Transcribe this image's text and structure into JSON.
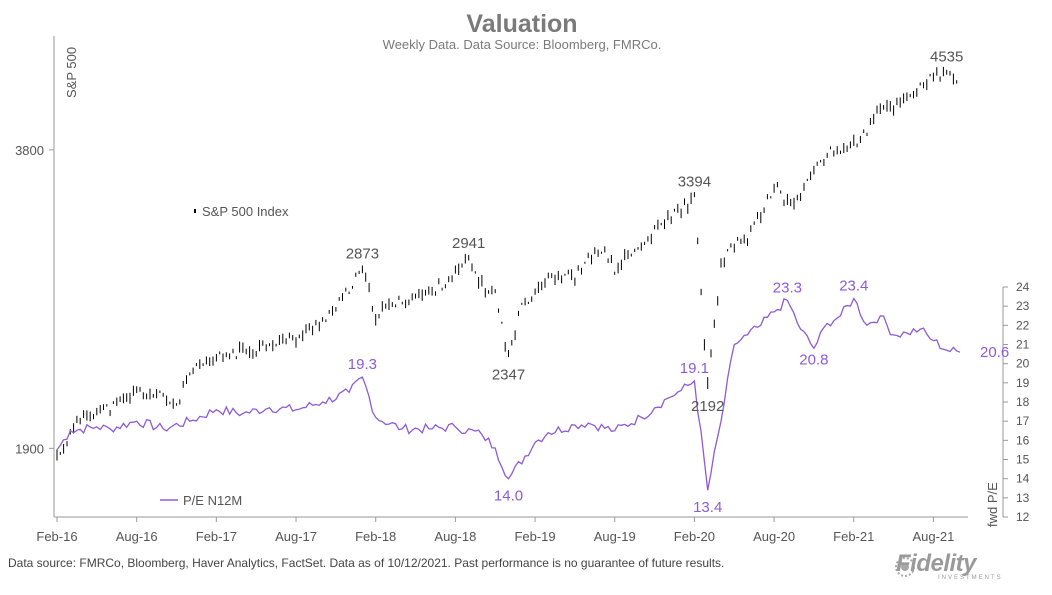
{
  "chart_data": {
    "type": "line",
    "title": "Valuation",
    "subtitle": "Weekly Data. Data Source: Bloomberg, FMRCo.",
    "x_labels": [
      "Feb-16",
      "Aug-16",
      "Feb-17",
      "Aug-17",
      "Feb-18",
      "Aug-18",
      "Feb-19",
      "Aug-19",
      "Feb-20",
      "Aug-20",
      "Feb-21",
      "Aug-21"
    ],
    "x_range": [
      "2016-02",
      "2021-10"
    ],
    "left_axis": {
      "label": "S&P 500",
      "scale": "log",
      "tick_labels": [
        "1900",
        "3800"
      ],
      "ticks": [
        1900,
        3800
      ],
      "range": [
        1620,
        4950
      ]
    },
    "right_axis": {
      "label": "fwd P/E",
      "tick_labels": [
        "12",
        "13",
        "14",
        "15",
        "16",
        "17",
        "18",
        "19",
        "20",
        "21",
        "22",
        "23",
        "24"
      ],
      "range": [
        12,
        24
      ]
    },
    "series": [
      {
        "name": "S&P 500 Index",
        "style": "weekly range bars",
        "color": "#000000",
        "axis": "left",
        "points": [
          [
            "2016-02",
            1864
          ],
          [
            "2016-04",
            2060
          ],
          [
            "2016-06",
            2085
          ],
          [
            "2016-07",
            2120
          ],
          [
            "2016-08",
            2170
          ],
          [
            "2016-10",
            2140
          ],
          [
            "2016-11",
            2100
          ],
          [
            "2016-12",
            2260
          ],
          [
            "2017-02",
            2340
          ],
          [
            "2017-03",
            2365
          ],
          [
            "2017-05",
            2395
          ],
          [
            "2017-06",
            2430
          ],
          [
            "2017-08",
            2450
          ],
          [
            "2017-09",
            2500
          ],
          [
            "2017-11",
            2630
          ],
          [
            "2018-01",
            2873
          ],
          [
            "2018-02",
            2590
          ],
          [
            "2018-03",
            2640
          ],
          [
            "2018-05",
            2710
          ],
          [
            "2018-06",
            2720
          ],
          [
            "2018-08",
            2850
          ],
          [
            "2018-09",
            2941
          ],
          [
            "2018-10",
            2770
          ],
          [
            "2018-11",
            2720
          ],
          [
            "2018-12",
            2347
          ],
          [
            "2019-01",
            2650
          ],
          [
            "2019-03",
            2840
          ],
          [
            "2019-05",
            2830
          ],
          [
            "2019-06",
            2940
          ],
          [
            "2019-07",
            3025
          ],
          [
            "2019-08",
            2880
          ],
          [
            "2019-09",
            2970
          ],
          [
            "2019-10",
            3030
          ],
          [
            "2019-11",
            3140
          ],
          [
            "2019-12",
            3240
          ],
          [
            "2020-02",
            3394
          ],
          [
            "2020-03",
            2192
          ],
          [
            "2020-04",
            2900
          ],
          [
            "2020-05",
            3050
          ],
          [
            "2020-06",
            3100
          ],
          [
            "2020-07",
            3270
          ],
          [
            "2020-08",
            3500
          ],
          [
            "2020-09",
            3360
          ],
          [
            "2020-10",
            3400
          ],
          [
            "2020-11",
            3640
          ],
          [
            "2020-12",
            3760
          ],
          [
            "2021-02",
            3850
          ],
          [
            "2021-03",
            3970
          ],
          [
            "2021-04",
            4180
          ],
          [
            "2021-05",
            4200
          ],
          [
            "2021-06",
            4300
          ],
          [
            "2021-07",
            4400
          ],
          [
            "2021-08",
            4500
          ],
          [
            "2021-09",
            4535
          ],
          [
            "2021-10",
            4400
          ]
        ]
      },
      {
        "name": "P/E N12M",
        "color": "#8e5bd6",
        "axis": "right",
        "points": [
          [
            "2016-02",
            15.5
          ],
          [
            "2016-03",
            16.5
          ],
          [
            "2016-05",
            16.7
          ],
          [
            "2016-06",
            16.6
          ],
          [
            "2016-08",
            17.0
          ],
          [
            "2016-10",
            16.6
          ],
          [
            "2016-12",
            17.0
          ],
          [
            "2017-02",
            17.6
          ],
          [
            "2017-04",
            17.4
          ],
          [
            "2017-06",
            17.7
          ],
          [
            "2017-08",
            17.6
          ],
          [
            "2017-10",
            18.0
          ],
          [
            "2017-12",
            18.5
          ],
          [
            "2018-01",
            19.3
          ],
          [
            "2018-02",
            17.2
          ],
          [
            "2018-04",
            16.6
          ],
          [
            "2018-06",
            16.6
          ],
          [
            "2018-08",
            16.7
          ],
          [
            "2018-10",
            16.3
          ],
          [
            "2018-11",
            15.6
          ],
          [
            "2018-12",
            14.0
          ],
          [
            "2019-02",
            15.9
          ],
          [
            "2019-03",
            16.4
          ],
          [
            "2019-05",
            16.8
          ],
          [
            "2019-06",
            16.9
          ],
          [
            "2019-08",
            16.5
          ],
          [
            "2019-10",
            17.2
          ],
          [
            "2019-11",
            17.7
          ],
          [
            "2019-12",
            18.2
          ],
          [
            "2020-01",
            18.6
          ],
          [
            "2020-02",
            19.1
          ],
          [
            "2020-03",
            13.4
          ],
          [
            "2020-04",
            17.0
          ],
          [
            "2020-05",
            21.0
          ],
          [
            "2020-06",
            21.5
          ],
          [
            "2020-07",
            22.0
          ],
          [
            "2020-08",
            22.7
          ],
          [
            "2020-09",
            23.3
          ],
          [
            "2020-10",
            21.8
          ],
          [
            "2020-11",
            20.8
          ],
          [
            "2020-12",
            22.1
          ],
          [
            "2021-01",
            22.5
          ],
          [
            "2021-02",
            23.4
          ],
          [
            "2021-03",
            22.0
          ],
          [
            "2021-04",
            22.5
          ],
          [
            "2021-05",
            21.5
          ],
          [
            "2021-06",
            21.6
          ],
          [
            "2021-07",
            21.8
          ],
          [
            "2021-08",
            21.2
          ],
          [
            "2021-09",
            20.7
          ],
          [
            "2021-10",
            20.6
          ]
        ]
      }
    ],
    "annotations": [
      {
        "text": "4535",
        "series": "S&P 500 Index",
        "x": "2021-09",
        "y": 4535
      },
      {
        "text": "3394",
        "series": "S&P 500 Index",
        "x": "2020-02",
        "y": 3394
      },
      {
        "text": "2873",
        "series": "S&P 500 Index",
        "x": "2018-01",
        "y": 2873
      },
      {
        "text": "2941",
        "series": "S&P 500 Index",
        "x": "2018-09",
        "y": 2941
      },
      {
        "text": "2347",
        "series": "S&P 500 Index",
        "x": "2018-12",
        "y": 2347
      },
      {
        "text": "2192",
        "series": "S&P 500 Index",
        "x": "2020-03",
        "y": 2192
      },
      {
        "text": "19.3",
        "series": "P/E N12M",
        "x": "2018-01",
        "y": 19.3
      },
      {
        "text": "14.0",
        "series": "P/E N12M",
        "x": "2018-12",
        "y": 14.0
      },
      {
        "text": "19.1",
        "series": "P/E N12M",
        "x": "2020-02",
        "y": 19.1
      },
      {
        "text": "13.4",
        "series": "P/E N12M",
        "x": "2020-03",
        "y": 13.4
      },
      {
        "text": "23.3",
        "series": "P/E N12M",
        "x": "2020-09",
        "y": 23.3
      },
      {
        "text": "20.8",
        "series": "P/E N12M",
        "x": "2020-11",
        "y": 20.8
      },
      {
        "text": "23.4",
        "series": "P/E N12M",
        "x": "2021-02",
        "y": 23.4
      },
      {
        "text": "20.6",
        "series": "P/E N12M",
        "x": "2021-10",
        "y": 20.6
      }
    ],
    "legend": [
      {
        "label": "S&P 500 Index",
        "series": "S&P 500 Index"
      },
      {
        "label": "P/E N12M",
        "series": "P/E N12M"
      }
    ],
    "grid": false
  },
  "footer": {
    "source_note": "Data source: FMRCo, Bloomberg, Haver Analytics, FactSet. Data as of 10/12/2021. Past performance is no guarantee of future results.",
    "brand_name": "Fidelity",
    "brand_tagline": "INVESTMENTS"
  }
}
